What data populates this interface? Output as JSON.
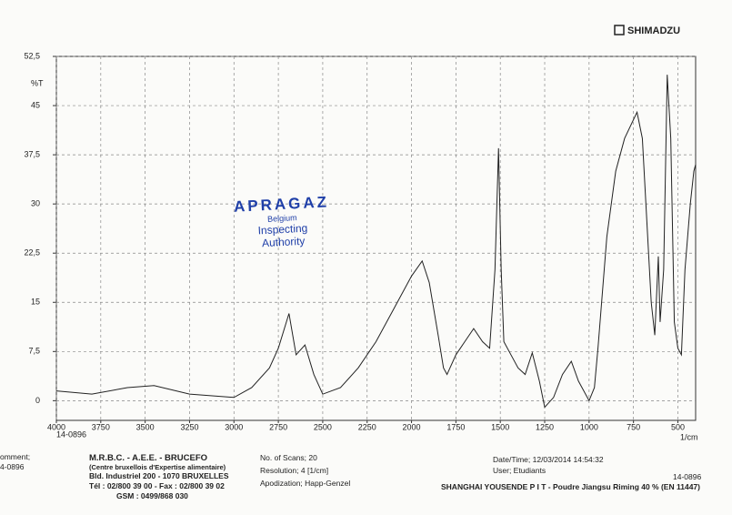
{
  "chart_data": {
    "type": "line",
    "brand": "SHIMADZU",
    "ylabel": "%T",
    "xlabel": "1/cm",
    "sample_id": "14-0896",
    "stamp": [
      "APRAGAZ",
      "Belgium",
      "Inspecting",
      "Authority"
    ],
    "xlim": [
      4000,
      400
    ],
    "ylim": [
      -3,
      52.5
    ],
    "xticks": [
      4000,
      3750,
      3500,
      3250,
      3000,
      2750,
      2500,
      2250,
      2000,
      1750,
      1500,
      1250,
      1000,
      750,
      500
    ],
    "yticks": [
      0,
      {
        "value": 7.5,
        "label": "7,5"
      },
      15,
      {
        "value": 22.5,
        "label": "22,5"
      },
      30,
      {
        "value": 37.5,
        "label": "37,5"
      },
      45,
      {
        "value": 52.5,
        "label": "52,5"
      }
    ],
    "grid": true,
    "series": [
      {
        "color": "#222222",
        "x": [
          4000,
          3800,
          3600,
          3450,
          3250,
          3000,
          2900,
          2800,
          2750,
          2690,
          2650,
          2600,
          2550,
          2500,
          2400,
          2300,
          2200,
          2100,
          2000,
          1940,
          1900,
          1850,
          1820,
          1800,
          1750,
          1700,
          1650,
          1600,
          1560,
          1530,
          1510,
          1495,
          1480,
          1440,
          1400,
          1360,
          1320,
          1280,
          1250,
          1200,
          1150,
          1100,
          1060,
          1000,
          970,
          950,
          900,
          850,
          800,
          730,
          700,
          680,
          650,
          630,
          610,
          600,
          580,
          560,
          540,
          520,
          500,
          480,
          460,
          430,
          410,
          400
        ],
        "values": [
          1.5,
          1,
          2,
          2.3,
          1,
          0.5,
          2,
          5,
          8,
          13.3,
          7,
          8.5,
          4,
          1,
          2,
          5,
          9,
          14,
          19,
          21.3,
          18,
          10,
          5,
          4,
          7,
          9,
          11,
          9,
          8,
          20,
          38.5,
          20,
          9,
          7,
          5,
          4,
          7.3,
          3,
          -1,
          0.5,
          4,
          6,
          3,
          0,
          2,
          8,
          25,
          35,
          40,
          44,
          40,
          30,
          15,
          10,
          22,
          12,
          20,
          49.7,
          40,
          12,
          8,
          7,
          20,
          30,
          35,
          36
        ]
      }
    ]
  },
  "footer": {
    "comment_label": "omment;",
    "comment_id": "4-0896",
    "lab": [
      "M.R.B.C. - A.E.E. - BRUCEFO",
      "(Centre bruxellois d'Expertise alimentaire)",
      "Bld. Industriel 200 - 1070 BRUXELLES",
      "Tél : 02/800 39 00 - Fax : 02/800 39 02",
      "GSM : 0499/868 030"
    ],
    "settings": [
      "No. of Scans; 20",
      "Resolution; 4 [1/cm]",
      "Apodization; Happ-Genzel"
    ],
    "date": "Date/Time; 12/03/2014 14:54:32",
    "user": "User; Etudiants",
    "id": "14-0896",
    "sample": "SHANGHAI YOUSENDE P I T - Poudre Jiangsu Riming 40 % (EN 11447)"
  }
}
